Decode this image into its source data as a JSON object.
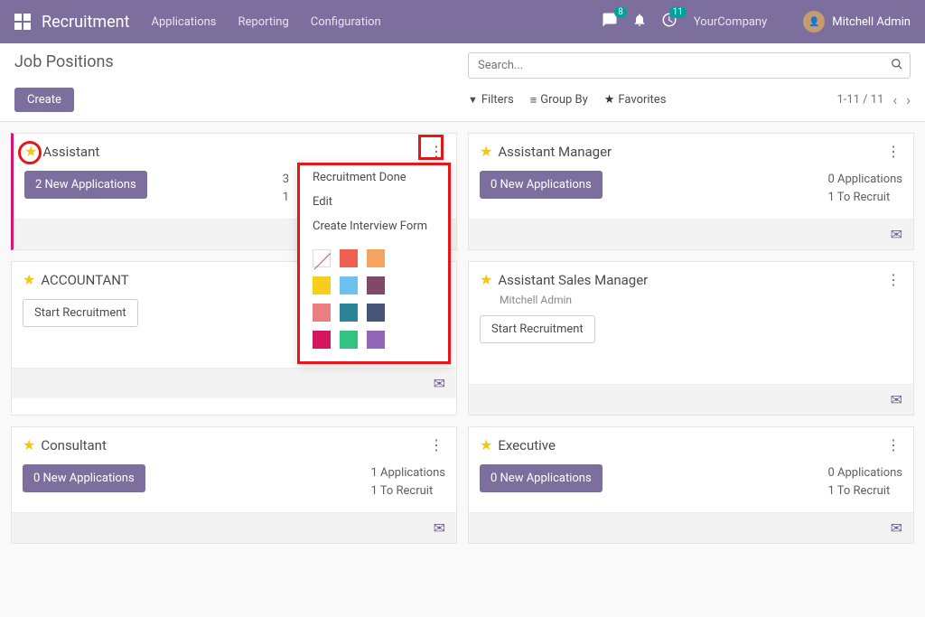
{
  "nav": {
    "brand": "Recruitment",
    "links": [
      "Applications",
      "Reporting",
      "Configuration"
    ],
    "company": "YourCompany",
    "user": "Mitchell Admin",
    "chat_badge": "8",
    "activity_badge": "11"
  },
  "cp": {
    "title": "Job Positions",
    "create": "Create",
    "search_placeholder": "Search...",
    "filters": "Filters",
    "groupby": "Group By",
    "favorites": "Favorites",
    "pager": "1-11 / 11"
  },
  "dropdown": {
    "items": [
      "Recruitment Done",
      "Edit",
      "Create Interview Form"
    ],
    "colors": [
      "none",
      "#f06050",
      "#f4a460",
      "#f7cd1f",
      "#6cc1ed",
      "#814968",
      "#eb7e7f",
      "#2c8397",
      "#475577",
      "#d6145f",
      "#30c381",
      "#9365b8"
    ]
  },
  "cards": [
    {
      "title": "Assistant",
      "highlight": true,
      "button": "2 New Applications",
      "btn_primary": true,
      "stats": [
        "3 Applications",
        "1 To Recruit"
      ],
      "stats_clip": true
    },
    {
      "title": "Assistant Manager",
      "button": "0 New Applications",
      "btn_primary": true,
      "stats": [
        "0 Applications",
        "1 To Recruit"
      ]
    },
    {
      "title": "ACCOUNTANT",
      "button": "Start Recruitment",
      "btn_primary": false,
      "stats": [],
      "tall": true
    },
    {
      "title": "Assistant Sales Manager",
      "subtitle": "Mitchell Admin",
      "button": "Start Recruitment",
      "btn_primary": false,
      "stats": [],
      "tall": true
    },
    {
      "title": "Consultant",
      "button": "0 New Applications",
      "btn_primary": true,
      "stats": [
        "1 Applications",
        "1 To Recruit"
      ]
    },
    {
      "title": "Executive",
      "button": "0 New Applications",
      "btn_primary": true,
      "stats": [
        "0 Applications",
        "1 To Recruit"
      ]
    }
  ]
}
